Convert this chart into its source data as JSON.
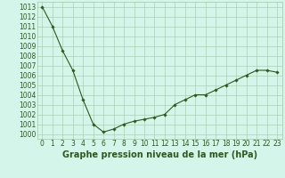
{
  "x": [
    0,
    1,
    2,
    3,
    4,
    5,
    6,
    7,
    8,
    9,
    10,
    11,
    12,
    13,
    14,
    15,
    16,
    17,
    18,
    19,
    20,
    21,
    22,
    23
  ],
  "y": [
    1013,
    1011,
    1008.5,
    1006.5,
    1003.5,
    1001,
    1000.2,
    1000.5,
    1001,
    1001.3,
    1001.5,
    1001.7,
    1002,
    1003,
    1003.5,
    1004,
    1004,
    1004.5,
    1005,
    1005.5,
    1006,
    1006.5,
    1006.5,
    1006.3
  ],
  "line_color": "#2d5a1b",
  "marker": "D",
  "marker_size": 1.8,
  "background_color": "#d4f5e9",
  "grid_color": "#a0c8a0",
  "xlabel": "Graphe pression niveau de la mer (hPa)",
  "ylim": [
    999.5,
    1013.5
  ],
  "xlim": [
    -0.5,
    23.5
  ],
  "yticks": [
    1000,
    1001,
    1002,
    1003,
    1004,
    1005,
    1006,
    1007,
    1008,
    1009,
    1010,
    1011,
    1012,
    1013
  ],
  "xticks": [
    0,
    1,
    2,
    3,
    4,
    5,
    6,
    7,
    8,
    9,
    10,
    11,
    12,
    13,
    14,
    15,
    16,
    17,
    18,
    19,
    20,
    21,
    22,
    23
  ],
  "tick_fontsize": 5.5,
  "xlabel_fontsize": 7,
  "label_color": "#2d5a1b",
  "linewidth": 0.8
}
